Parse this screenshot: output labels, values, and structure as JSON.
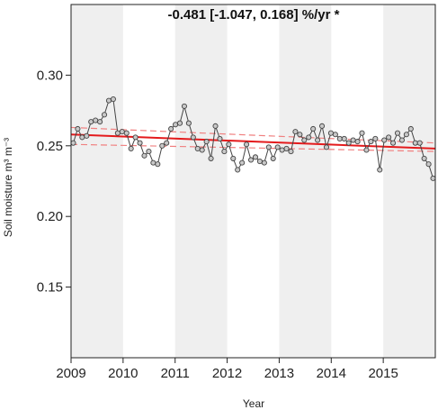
{
  "chart_data": {
    "type": "line",
    "title": "-0.481 [-1.047, 0.168] %/yr *",
    "xlabel": "Year",
    "ylabel": "Soil moisture m³ m⁻³",
    "xlim": [
      2009.0,
      2016.0
    ],
    "ylim": [
      0.1,
      0.35
    ],
    "x_ticks": [
      2009,
      2010,
      2011,
      2012,
      2013,
      2014,
      2015
    ],
    "y_ticks": [
      0.15,
      0.2,
      0.25,
      0.3
    ],
    "y_tick_labels": [
      "0.15",
      "0.20",
      "0.25",
      "0.30"
    ],
    "shaded_years": [
      2009,
      2011,
      2013,
      2015
    ],
    "colors": {
      "shade": "#efefef",
      "series_line": "#444444",
      "marker_fill": "#c8c8c8",
      "trend": "#e41a1c",
      "confidence": "#f08080",
      "axis": "#222222"
    },
    "series": [
      {
        "values": [
          0.252,
          0.262,
          0.256,
          0.257,
          0.267,
          0.268,
          0.267,
          0.272,
          0.282,
          0.283,
          0.259,
          0.26,
          0.259,
          0.248,
          0.256,
          0.252,
          0.243,
          0.246,
          0.238,
          0.237,
          0.25,
          0.252,
          0.262,
          0.265,
          0.266,
          0.278,
          0.266,
          0.256,
          0.248,
          0.247,
          0.253,
          0.241,
          0.264,
          0.255,
          0.246,
          0.251,
          0.241,
          0.233,
          0.238,
          0.251,
          0.24,
          0.242,
          0.239,
          0.238,
          0.249,
          0.241,
          0.249,
          0.247,
          0.248,
          0.246,
          0.26,
          0.258,
          0.254,
          0.256,
          0.262,
          0.254,
          0.264,
          0.249,
          0.259,
          0.258,
          0.255,
          0.255,
          0.252,
          0.254,
          0.253,
          0.259,
          0.247,
          0.253,
          0.255,
          0.233,
          0.254,
          0.256,
          0.252,
          0.259,
          0.254,
          0.258,
          0.262,
          0.252,
          0.252,
          0.241,
          0.237,
          0.227
        ]
      }
    ],
    "trend": {
      "start": [
        2009.0,
        0.258
      ],
      "end": [
        2016.0,
        0.248
      ]
    },
    "confidence_upper": {
      "start": [
        2009.0,
        0.263
      ],
      "end": [
        2016.0,
        0.252
      ]
    },
    "confidence_lower": {
      "start": [
        2009.0,
        0.251
      ],
      "end": [
        2016.0,
        0.246
      ]
    }
  }
}
